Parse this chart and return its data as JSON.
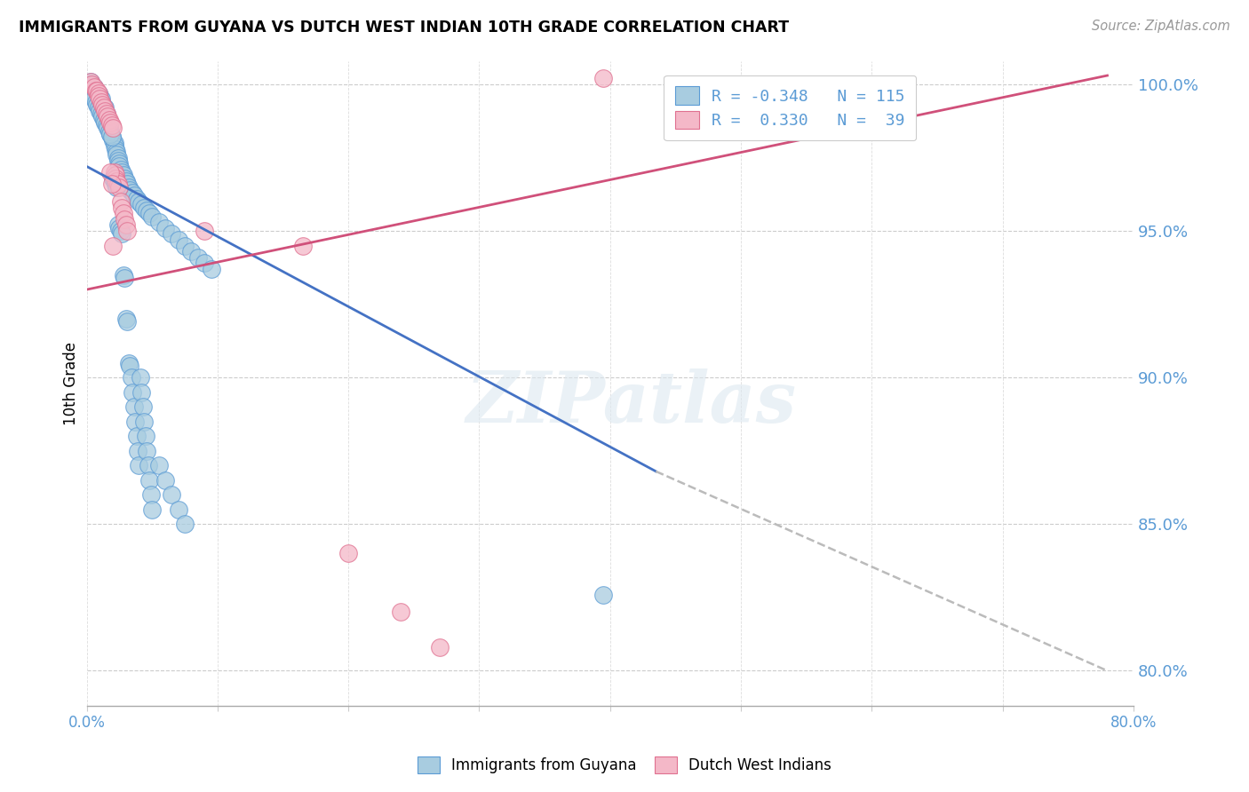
{
  "title": "IMMIGRANTS FROM GUYANA VS DUTCH WEST INDIAN 10TH GRADE CORRELATION CHART",
  "source": "Source: ZipAtlas.com",
  "ylabel": "10th Grade",
  "y_ticks": [
    80.0,
    85.0,
    90.0,
    95.0,
    100.0
  ],
  "x_range": [
    0.0,
    0.8
  ],
  "y_range": [
    0.788,
    1.008
  ],
  "color_blue": "#a8cce0",
  "color_pink": "#f4b8c8",
  "edge_blue": "#5b9bd5",
  "edge_pink": "#e07090",
  "line_blue": "#4472c4",
  "line_pink": "#d0507a",
  "line_dashed": "#bbbbbb",
  "legend_text1": "R = -0.348   N = 115",
  "legend_text2": "R =  0.330   N =  39",
  "blue_line_x": [
    0.0,
    0.435
  ],
  "blue_line_y": [
    0.972,
    0.868
  ],
  "dashed_line_x": [
    0.435,
    0.78
  ],
  "dashed_line_y": [
    0.868,
    0.8
  ],
  "pink_line_x": [
    0.0,
    0.78
  ],
  "pink_line_y": [
    0.93,
    1.003
  ],
  "blue_x": [
    0.003,
    0.003,
    0.005,
    0.006,
    0.007,
    0.008,
    0.009,
    0.01,
    0.01,
    0.011,
    0.011,
    0.012,
    0.013,
    0.014,
    0.014,
    0.015,
    0.015,
    0.016,
    0.016,
    0.017,
    0.017,
    0.018,
    0.018,
    0.019,
    0.02,
    0.021,
    0.021,
    0.022,
    0.023,
    0.023,
    0.024,
    0.024,
    0.025,
    0.025,
    0.026,
    0.027,
    0.028,
    0.029,
    0.03,
    0.031,
    0.032,
    0.033,
    0.035,
    0.036,
    0.038,
    0.04,
    0.042,
    0.044,
    0.046,
    0.048,
    0.05,
    0.055,
    0.06,
    0.065,
    0.07,
    0.075,
    0.08,
    0.085,
    0.09,
    0.095,
    0.002,
    0.003,
    0.004,
    0.005,
    0.006,
    0.007,
    0.008,
    0.009,
    0.01,
    0.011,
    0.012,
    0.013,
    0.014,
    0.015,
    0.016,
    0.017,
    0.018,
    0.019,
    0.02,
    0.021,
    0.022,
    0.023,
    0.024,
    0.025,
    0.026,
    0.027,
    0.028,
    0.029,
    0.03,
    0.031,
    0.032,
    0.033,
    0.034,
    0.035,
    0.036,
    0.037,
    0.038,
    0.039,
    0.04,
    0.041,
    0.042,
    0.043,
    0.044,
    0.045,
    0.046,
    0.047,
    0.048,
    0.049,
    0.05,
    0.055,
    0.06,
    0.065,
    0.07,
    0.075,
    0.395
  ],
  "blue_y": [
    1.001,
    1.0,
    0.999,
    0.999,
    0.998,
    0.997,
    0.997,
    0.996,
    0.995,
    0.995,
    0.994,
    0.993,
    0.992,
    0.992,
    0.991,
    0.99,
    0.989,
    0.988,
    0.987,
    0.986,
    0.985,
    0.984,
    0.983,
    0.982,
    0.981,
    0.98,
    0.979,
    0.978,
    0.977,
    0.976,
    0.975,
    0.974,
    0.973,
    0.972,
    0.971,
    0.97,
    0.969,
    0.968,
    0.967,
    0.966,
    0.965,
    0.964,
    0.963,
    0.962,
    0.961,
    0.96,
    0.959,
    0.958,
    0.957,
    0.956,
    0.955,
    0.953,
    0.951,
    0.949,
    0.947,
    0.945,
    0.943,
    0.941,
    0.939,
    0.937,
    0.999,
    0.998,
    0.997,
    0.996,
    0.995,
    0.994,
    0.993,
    0.992,
    0.991,
    0.99,
    0.989,
    0.988,
    0.987,
    0.986,
    0.985,
    0.984,
    0.983,
    0.982,
    0.968,
    0.967,
    0.966,
    0.965,
    0.952,
    0.951,
    0.95,
    0.949,
    0.935,
    0.934,
    0.92,
    0.919,
    0.905,
    0.904,
    0.9,
    0.895,
    0.89,
    0.885,
    0.88,
    0.875,
    0.87,
    0.9,
    0.895,
    0.89,
    0.885,
    0.88,
    0.875,
    0.87,
    0.865,
    0.86,
    0.855,
    0.87,
    0.865,
    0.86,
    0.855,
    0.85,
    0.826
  ],
  "pink_x": [
    0.003,
    0.004,
    0.006,
    0.007,
    0.008,
    0.009,
    0.009,
    0.01,
    0.011,
    0.012,
    0.013,
    0.014,
    0.015,
    0.016,
    0.017,
    0.018,
    0.019,
    0.02,
    0.021,
    0.022,
    0.022,
    0.023,
    0.024,
    0.025,
    0.026,
    0.027,
    0.028,
    0.029,
    0.03,
    0.031,
    0.02,
    0.09,
    0.165,
    0.2,
    0.24,
    0.27,
    0.018,
    0.019,
    0.395
  ],
  "pink_y": [
    1.001,
    1.0,
    0.999,
    0.998,
    0.998,
    0.997,
    0.996,
    0.995,
    0.994,
    0.993,
    0.992,
    0.991,
    0.99,
    0.989,
    0.988,
    0.987,
    0.986,
    0.985,
    0.97,
    0.969,
    0.968,
    0.967,
    0.966,
    0.965,
    0.96,
    0.958,
    0.956,
    0.954,
    0.952,
    0.95,
    0.945,
    0.95,
    0.945,
    0.84,
    0.82,
    0.808,
    0.97,
    0.966,
    1.002
  ]
}
